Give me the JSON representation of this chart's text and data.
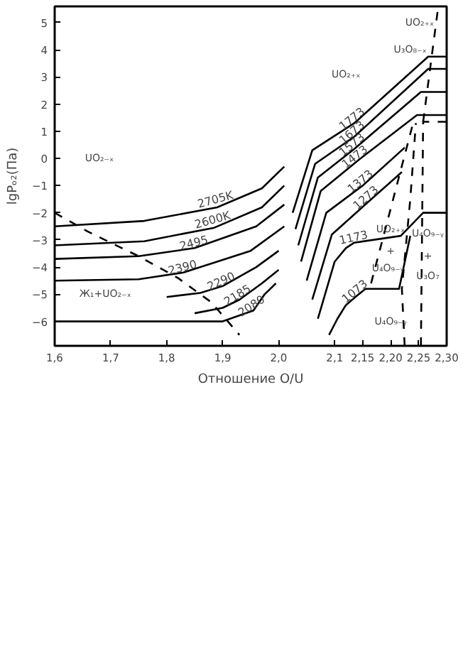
{
  "chart_data": {
    "type": "line",
    "xlabel": "Отношение O/U",
    "ylabel": "lgPₒ₂(Па)",
    "xlim": [
      1.6,
      2.3
    ],
    "ylim": [
      -6.9,
      5.6
    ],
    "xticks": [
      {
        "value": 1.6,
        "label": "1,6"
      },
      {
        "value": 1.7,
        "label": "1,7"
      },
      {
        "value": 1.8,
        "label": "1,8"
      },
      {
        "value": 1.9,
        "label": "1,9"
      },
      {
        "value": 2.0,
        "label": "2,0"
      },
      {
        "value": 2.1,
        "label": "2,1"
      },
      {
        "value": 2.15,
        "label": "2,15"
      },
      {
        "value": 2.2,
        "label": "2,20"
      },
      {
        "value": 2.25,
        "label": "2,25"
      },
      {
        "value": 2.3,
        "label": "2,30"
      }
    ],
    "yticks": [
      -6,
      -5,
      -4,
      -3,
      -2,
      -1,
      0,
      1,
      2,
      3,
      4,
      5
    ],
    "series": [
      {
        "name": "2705K",
        "color": "#000000",
        "x": [
          1.6,
          1.76,
          1.89,
          1.97,
          2.01
        ],
        "values": [
          -2.5,
          -2.3,
          -1.8,
          -1.1,
          -0.3
        ]
      },
      {
        "name": "2600K",
        "color": "#000000",
        "x": [
          1.6,
          1.76,
          1.885,
          1.97,
          2.01
        ],
        "values": [
          -3.2,
          -3.05,
          -2.55,
          -1.8,
          -1.0
        ]
      },
      {
        "name": "2495",
        "color": "#000000",
        "x": [
          1.6,
          1.75,
          1.85,
          1.96,
          2.01
        ],
        "values": [
          -3.7,
          -3.6,
          -3.3,
          -2.5,
          -1.7
        ]
      },
      {
        "name": "2390",
        "color": "#000000",
        "x": [
          1.6,
          1.75,
          1.83,
          1.95,
          2.01
        ],
        "values": [
          -4.5,
          -4.45,
          -4.2,
          -3.4,
          -2.5
        ]
      },
      {
        "name": "2290",
        "color": "#000000",
        "x": [
          1.8,
          1.86,
          1.9,
          1.96,
          2.0
        ],
        "values": [
          -5.1,
          -4.95,
          -4.7,
          -4.0,
          -3.4
        ]
      },
      {
        "name": "2185",
        "color": "#000000",
        "x": [
          1.85,
          1.9,
          1.93,
          1.97,
          2.0
        ],
        "values": [
          -5.7,
          -5.5,
          -5.2,
          -4.6,
          -4.1
        ]
      },
      {
        "name": "2080",
        "color": "#000000",
        "x": [
          1.6,
          1.9,
          1.955,
          1.975,
          1.995
        ],
        "values": [
          -6.0,
          -6.0,
          -5.6,
          -5.0,
          -4.6
        ]
      },
      {
        "name": "1773",
        "color": "#000000",
        "x": [
          2.025,
          2.06,
          2.135,
          2.267,
          2.3
        ],
        "values": [
          -2.0,
          0.3,
          1.3,
          3.75,
          3.75
        ]
      },
      {
        "name": "1673",
        "color": "#000000",
        "x": [
          2.03,
          2.065,
          2.135,
          2.267,
          2.3
        ],
        "values": [
          -2.6,
          -0.2,
          0.8,
          3.3,
          3.3
        ]
      },
      {
        "name": "1573",
        "color": "#000000",
        "x": [
          2.035,
          2.07,
          2.135,
          2.254,
          2.3
        ],
        "values": [
          -3.2,
          -0.7,
          0.35,
          2.45,
          2.45
        ]
      },
      {
        "name": "1473",
        "color": "#000000",
        "x": [
          2.04,
          2.075,
          2.14,
          2.247,
          2.3
        ],
        "values": [
          -3.8,
          -1.2,
          -0.1,
          1.6,
          1.6
        ]
      },
      {
        "name": "1373",
        "color": "#000000",
        "x": [
          2.05,
          2.085,
          2.15,
          2.225
        ],
        "values": [
          -4.5,
          -2.0,
          -1.0,
          0.4
        ]
      },
      {
        "name": "1273",
        "color": "#000000",
        "x": [
          2.06,
          2.095,
          2.16,
          2.22
        ],
        "values": [
          -5.2,
          -2.8,
          -1.6,
          -0.5
        ]
      },
      {
        "name": "1173",
        "color": "#000000",
        "x": [
          2.07,
          2.1,
          2.12,
          2.135,
          2.218,
          2.258,
          2.3
        ],
        "values": [
          -5.9,
          -3.8,
          -3.3,
          -3.1,
          -2.85,
          -2.0,
          -2.0
        ]
      },
      {
        "name": "1073",
        "color": "#000000",
        "x": [
          2.09,
          2.105,
          2.12,
          2.14,
          2.155,
          2.215,
          2.235
        ],
        "values": [
          -6.5,
          -5.9,
          -5.4,
          -5.05,
          -4.8,
          -4.8,
          -2.85
        ]
      },
      {
        "color": "#000000",
        "line_style": "dashed",
        "x": [
          1.6,
          1.66,
          1.75,
          1.82,
          1.88,
          1.93
        ],
        "values": [
          -2.0,
          -2.7,
          -3.6,
          -4.4,
          -5.3,
          -6.5
        ]
      },
      {
        "color": "#000000",
        "line_style": "dashed",
        "x": [
          2.165,
          2.24
        ],
        "values": [
          -4.6,
          1.3
        ]
      },
      {
        "color": "#000000",
        "line_style": "dashed",
        "x": [
          2.225,
          2.22,
          2.235,
          2.245
        ],
        "values": [
          -6.9,
          -4.8,
          -1.5,
          1.3
        ]
      },
      {
        "color": "#000000",
        "line_style": "dashed",
        "x": [
          2.254,
          2.258,
          2.3
        ],
        "values": [
          -6.9,
          1.35,
          1.35
        ]
      },
      {
        "color": "#000000",
        "line_style": "dashed",
        "x": [
          2.258,
          2.285
        ],
        "values": [
          1.35,
          5.6
        ]
      }
    ],
    "annotations": [
      "UO₂₋ₓ",
      "Ж₁+UO₂₋ₓ",
      "UO₂₊ₓ",
      "UO₂₊ₓ",
      "U₃O₈₋ₓ",
      "UO₂₊ₓ",
      "+",
      "U₄O₉₋ᵧ",
      "U₄O₉₋ᵧ",
      "+",
      "U₃O₇",
      "U₄O₉₋ᵧ"
    ]
  }
}
